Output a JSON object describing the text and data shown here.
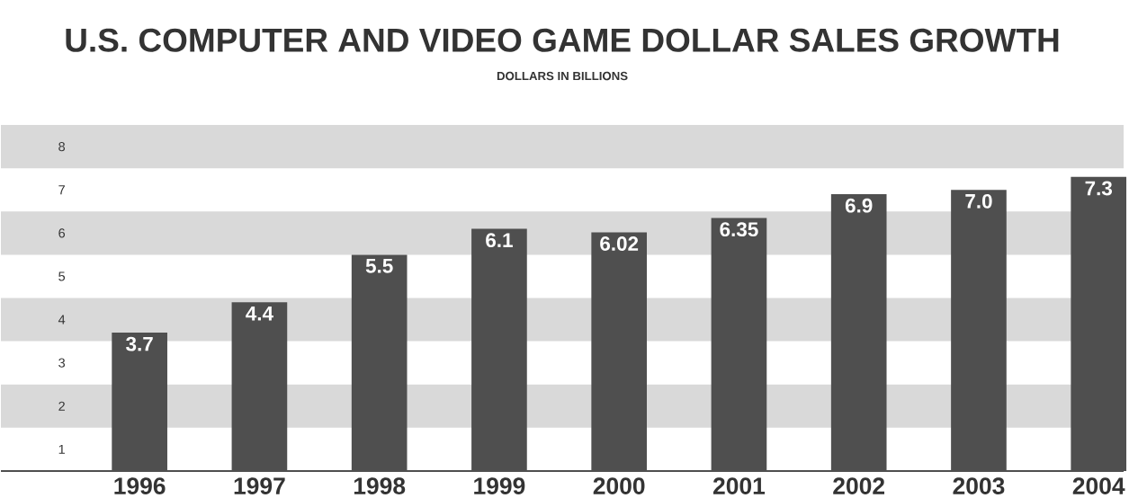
{
  "chart_data": {
    "type": "bar",
    "title": "U.S. COMPUTER AND VIDEO GAME DOLLAR SALES GROWTH",
    "subtitle": "DOLLARS IN BILLIONS",
    "categories": [
      "1996",
      "1997",
      "1998",
      "1999",
      "2000",
      "2001",
      "2002",
      "2003",
      "2004"
    ],
    "values": [
      3.7,
      4.4,
      5.5,
      6.1,
      6.02,
      6.35,
      6.9,
      7.0,
      7.3
    ],
    "value_labels": [
      "3.7",
      "4.4",
      "5.5",
      "6.1",
      "6.02",
      "6.35",
      "6.9",
      "7.0",
      "7.3"
    ],
    "color": "#4f4f4f",
    "ylim": [
      0.5,
      8.5
    ],
    "yticks": [
      1,
      2,
      3,
      4,
      5,
      6,
      7,
      8
    ],
    "bands": [
      {
        "axis": "y",
        "from": 1.5,
        "to": 2.5,
        "color": "#d9d9d9"
      },
      {
        "axis": "y",
        "from": 3.5,
        "to": 4.5,
        "color": "#d9d9d9"
      },
      {
        "axis": "y",
        "from": 5.5,
        "to": 6.5,
        "color": "#d9d9d9"
      },
      {
        "axis": "y",
        "from": 7.5,
        "to": 8.5,
        "color": "#d9d9d9"
      }
    ]
  }
}
